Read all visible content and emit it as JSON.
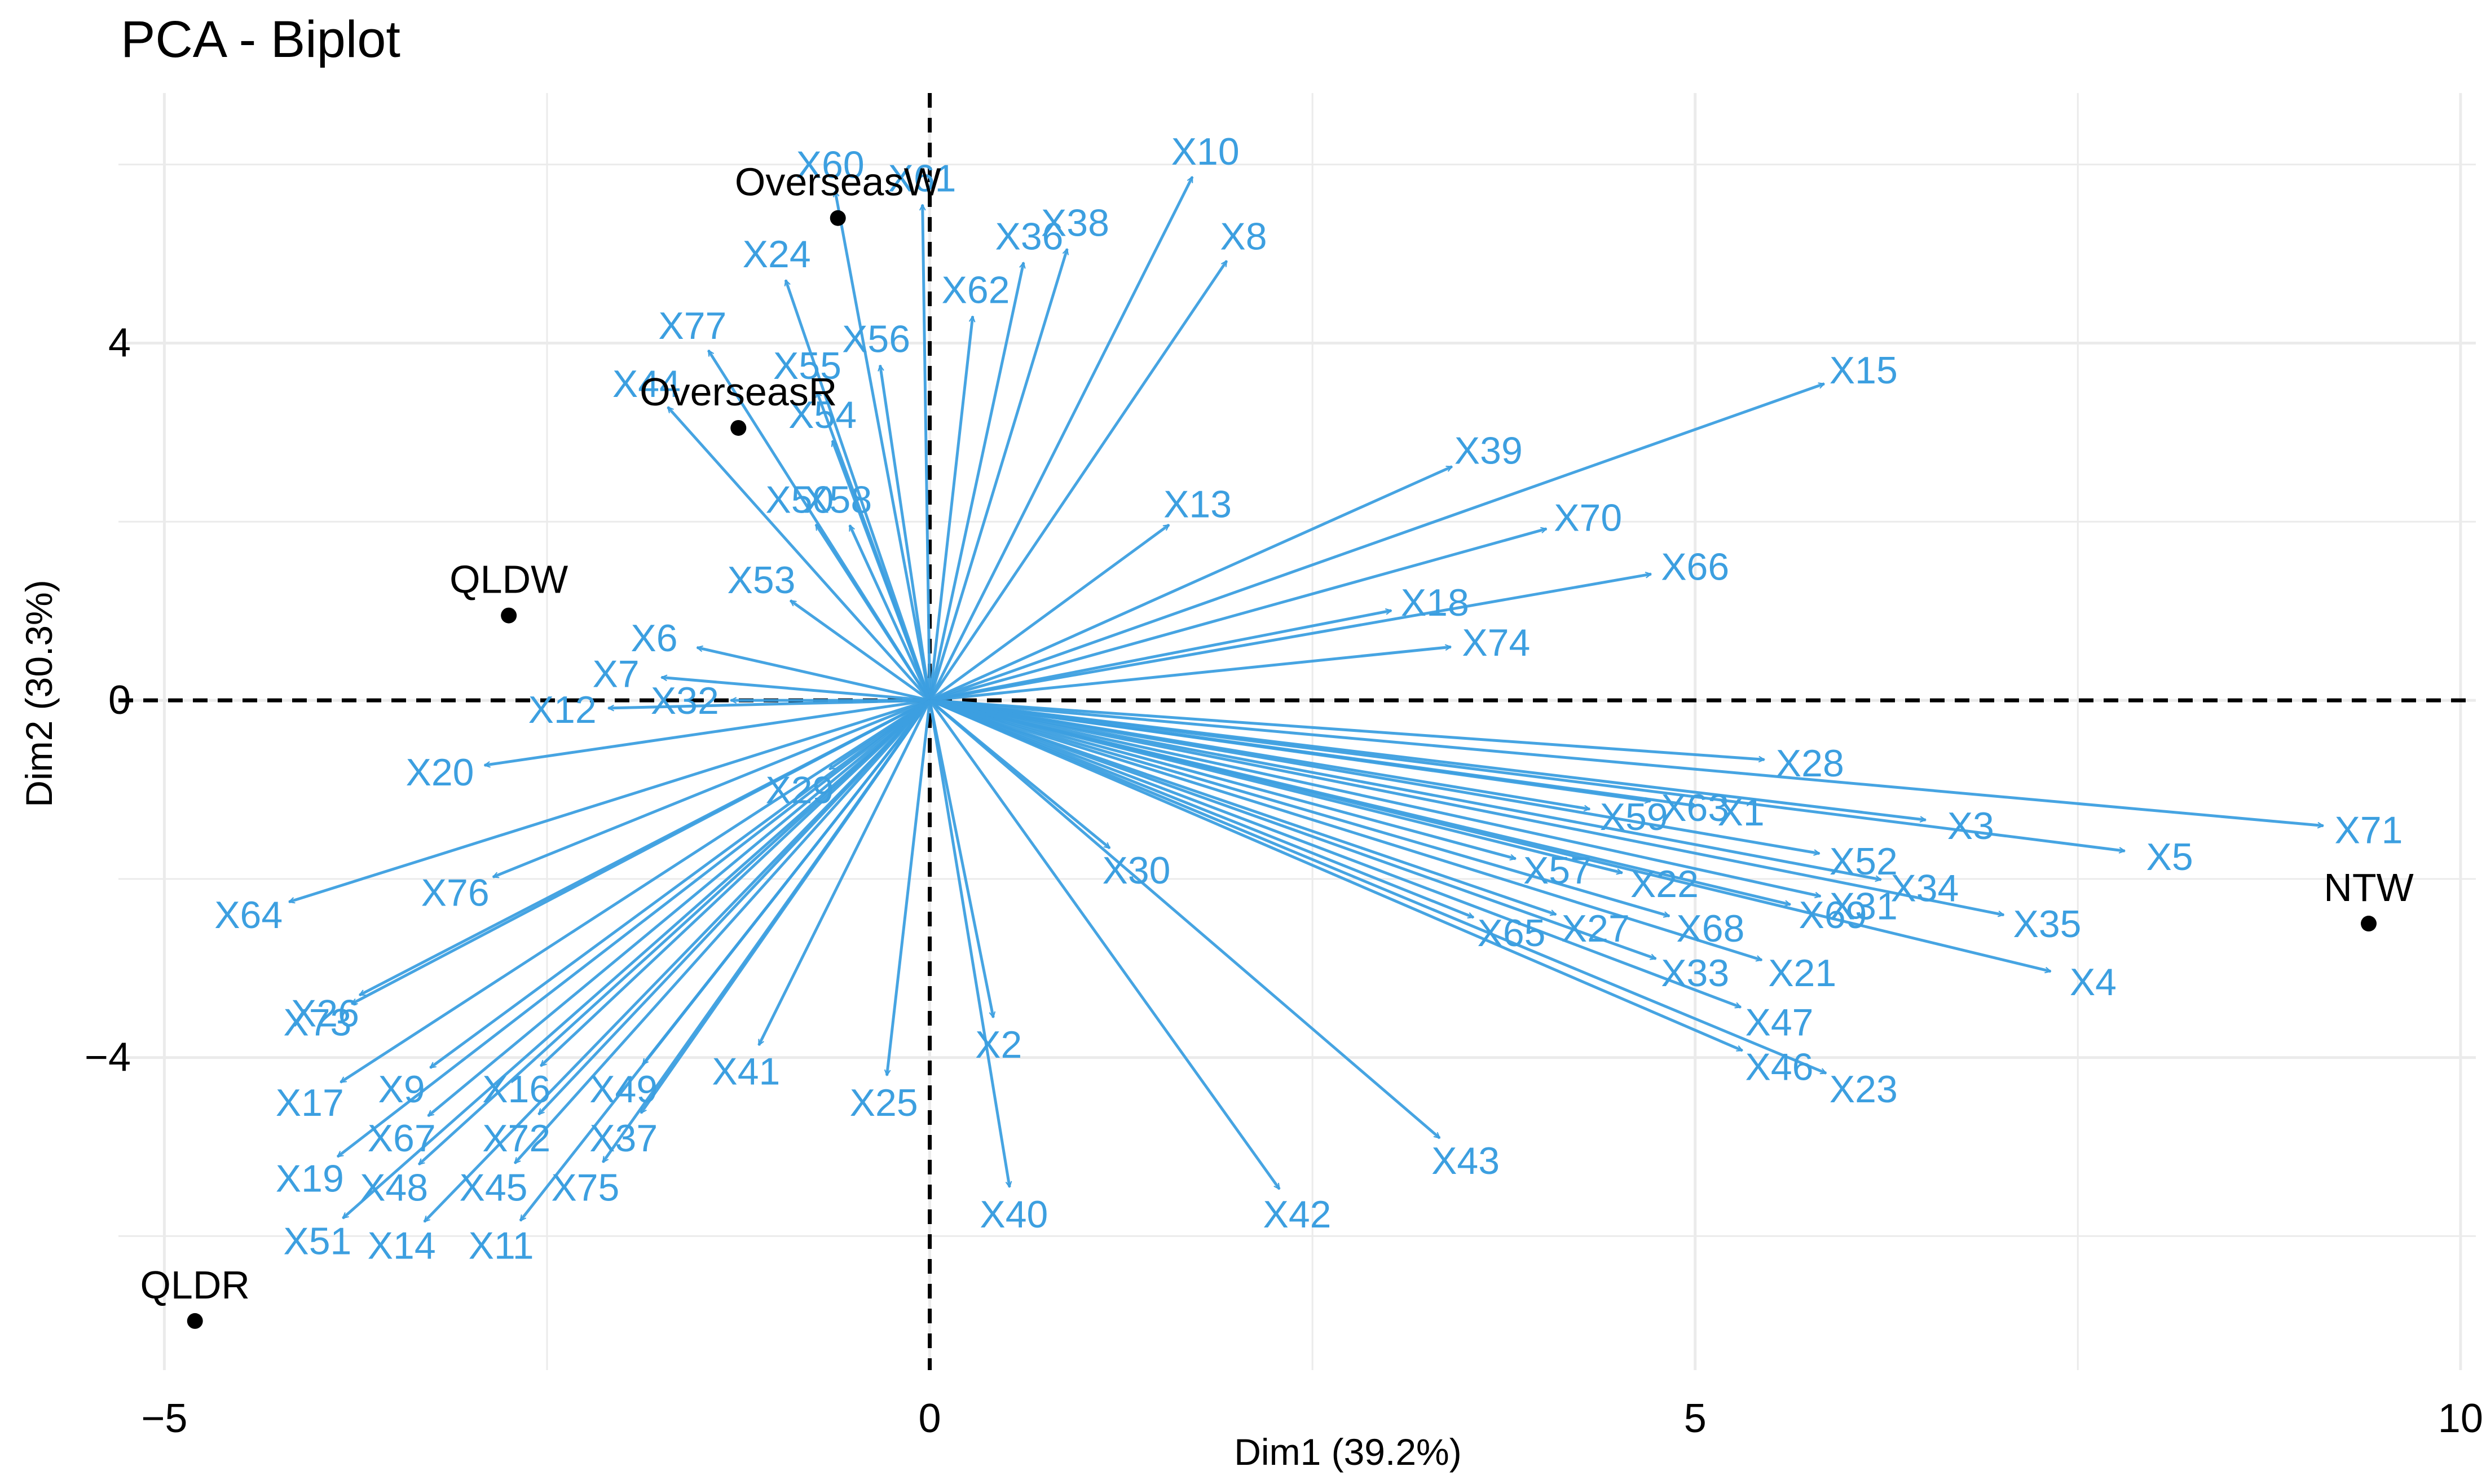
{
  "chart_data": {
    "type": "biplot",
    "title": "PCA - Biplot",
    "xlabel": "Dim1 (39.2%)",
    "ylabel": "Dim2 (30.3%)",
    "xlim": [
      -5.3,
      10.1
    ],
    "ylim": [
      -7.5,
      6.8
    ],
    "x_ticks": [
      -5,
      0,
      5,
      10
    ],
    "y_ticks": [
      -4,
      0,
      4
    ],
    "x_tick_labels": [
      "−5",
      "0",
      "5",
      "10"
    ],
    "y_tick_labels": [
      "−4",
      "0",
      "4"
    ],
    "colors": {
      "variables": "#3C9FE0",
      "individuals": "#000000",
      "grid": "#EBEBEB"
    },
    "individuals": [
      {
        "name": "OverseasW",
        "x": -0.6,
        "y": 5.4
      },
      {
        "name": "OverseasR",
        "x": -1.25,
        "y": 3.05
      },
      {
        "name": "QLDW",
        "x": -2.75,
        "y": 0.95
      },
      {
        "name": "QLDR",
        "x": -4.8,
        "y": -6.95
      },
      {
        "name": "NTW",
        "x": 9.4,
        "y": -2.5
      }
    ],
    "variables": [
      {
        "name": "X60",
        "x": -0.65,
        "y": 6.0
      },
      {
        "name": "X61",
        "x": -0.05,
        "y": 5.85
      },
      {
        "name": "X24",
        "x": -1.0,
        "y": 5.0
      },
      {
        "name": "X36",
        "x": 0.65,
        "y": 5.2
      },
      {
        "name": "X62",
        "x": 0.3,
        "y": 4.6
      },
      {
        "name": "X38",
        "x": 0.95,
        "y": 5.35
      },
      {
        "name": "X10",
        "x": 1.8,
        "y": 6.15
      },
      {
        "name": "X8",
        "x": 2.05,
        "y": 5.2
      },
      {
        "name": "X77",
        "x": -1.55,
        "y": 4.2
      },
      {
        "name": "X56",
        "x": -0.35,
        "y": 4.05
      },
      {
        "name": "X55",
        "x": -0.8,
        "y": 3.75
      },
      {
        "name": "X44",
        "x": -1.85,
        "y": 3.55
      },
      {
        "name": "X54",
        "x": -0.7,
        "y": 3.2
      },
      {
        "name": "X50",
        "x": -0.85,
        "y": 2.25
      },
      {
        "name": "X58",
        "x": -0.6,
        "y": 2.25
      },
      {
        "name": "X53",
        "x": -1.1,
        "y": 1.35
      },
      {
        "name": "X6",
        "x": -1.8,
        "y": 0.7
      },
      {
        "name": "X7",
        "x": -2.05,
        "y": 0.3
      },
      {
        "name": "X12",
        "x": -2.4,
        "y": -0.1
      },
      {
        "name": "X20",
        "x": -3.2,
        "y": -0.8
      },
      {
        "name": "X32",
        "x": -1.6,
        "y": 0.0
      },
      {
        "name": "X39",
        "x": 3.65,
        "y": 2.8
      },
      {
        "name": "X70",
        "x": 4.3,
        "y": 2.05
      },
      {
        "name": "X13",
        "x": 1.75,
        "y": 2.2
      },
      {
        "name": "X18",
        "x": 3.3,
        "y": 1.1
      },
      {
        "name": "X66",
        "x": 5.0,
        "y": 1.5
      },
      {
        "name": "X74",
        "x": 3.7,
        "y": 0.65
      },
      {
        "name": "X15",
        "x": 6.1,
        "y": 3.7
      },
      {
        "name": "X63",
        "x": 5.0,
        "y": -1.2
      },
      {
        "name": "X28",
        "x": 5.75,
        "y": -0.7
      },
      {
        "name": "X1",
        "x": 5.3,
        "y": -1.25
      },
      {
        "name": "X3",
        "x": 6.8,
        "y": -1.4
      },
      {
        "name": "X59",
        "x": 4.6,
        "y": -1.3
      },
      {
        "name": "X71",
        "x": 9.4,
        "y": -1.45
      },
      {
        "name": "X5",
        "x": 8.1,
        "y": -1.75
      },
      {
        "name": "X57",
        "x": 4.1,
        "y": -1.9
      },
      {
        "name": "X22",
        "x": 4.8,
        "y": -2.05
      },
      {
        "name": "X52",
        "x": 6.1,
        "y": -1.8
      },
      {
        "name": "X34",
        "x": 6.5,
        "y": -2.1
      },
      {
        "name": "X31",
        "x": 6.1,
        "y": -2.3
      },
      {
        "name": "X35",
        "x": 7.3,
        "y": -2.5
      },
      {
        "name": "X65",
        "x": 3.8,
        "y": -2.6
      },
      {
        "name": "X27",
        "x": 4.35,
        "y": -2.55
      },
      {
        "name": "X68",
        "x": 5.1,
        "y": -2.55
      },
      {
        "name": "X69",
        "x": 5.9,
        "y": -2.4
      },
      {
        "name": "X4",
        "x": 7.6,
        "y": -3.15
      },
      {
        "name": "X33",
        "x": 5.0,
        "y": -3.05
      },
      {
        "name": "X21",
        "x": 5.7,
        "y": -3.05
      },
      {
        "name": "X47",
        "x": 5.55,
        "y": -3.6
      },
      {
        "name": "X46",
        "x": 5.55,
        "y": -4.1
      },
      {
        "name": "X23",
        "x": 6.1,
        "y": -4.35
      },
      {
        "name": "X30",
        "x": 1.35,
        "y": -1.9
      },
      {
        "name": "X29",
        "x": -0.85,
        "y": -1.0
      },
      {
        "name": "X76",
        "x": -3.1,
        "y": -2.15
      },
      {
        "name": "X64",
        "x": -4.45,
        "y": -2.4
      },
      {
        "name": "X26",
        "x": -3.95,
        "y": -3.5
      },
      {
        "name": "X73",
        "x": -4.0,
        "y": -3.6
      },
      {
        "name": "X17",
        "x": -4.05,
        "y": -4.5
      },
      {
        "name": "X41",
        "x": -1.2,
        "y": -4.15
      },
      {
        "name": "X2",
        "x": 0.45,
        "y": -3.85
      },
      {
        "name": "X25",
        "x": -0.3,
        "y": -4.5
      },
      {
        "name": "X40",
        "x": 0.55,
        "y": -5.75
      },
      {
        "name": "X42",
        "x": 2.4,
        "y": -5.75
      },
      {
        "name": "X43",
        "x": 3.5,
        "y": -5.15
      },
      {
        "name": "X9",
        "x": -3.45,
        "y": -4.35
      },
      {
        "name": "X16",
        "x": -2.7,
        "y": -4.35
      },
      {
        "name": "X49",
        "x": -2.0,
        "y": -4.35
      },
      {
        "name": "X67",
        "x": -3.45,
        "y": -4.9
      },
      {
        "name": "X72",
        "x": -2.7,
        "y": -4.9
      },
      {
        "name": "X37",
        "x": -2.0,
        "y": -4.9
      },
      {
        "name": "X19",
        "x": -4.05,
        "y": -5.35
      },
      {
        "name": "X48",
        "x": -3.5,
        "y": -5.45
      },
      {
        "name": "X45",
        "x": -2.85,
        "y": -5.45
      },
      {
        "name": "X75",
        "x": -2.25,
        "y": -5.45
      },
      {
        "name": "X51",
        "x": -4.0,
        "y": -6.05
      },
      {
        "name": "X14",
        "x": -3.45,
        "y": -6.1
      },
      {
        "name": "X11",
        "x": -2.8,
        "y": -6.1
      }
    ]
  }
}
